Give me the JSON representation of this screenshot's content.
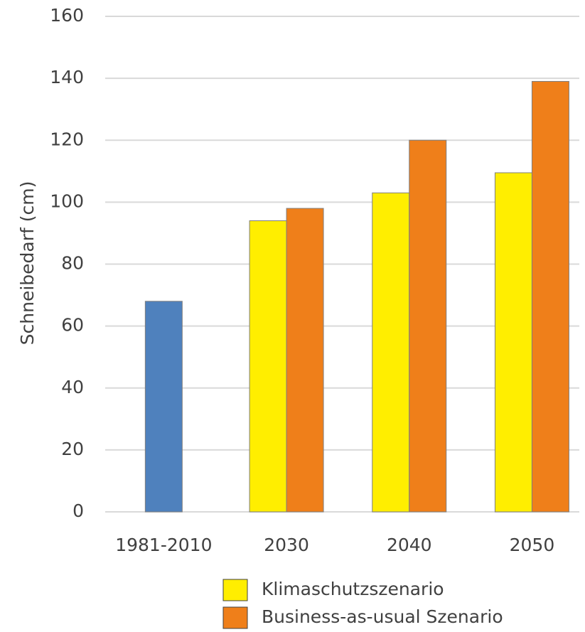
{
  "chart_data": {
    "type": "bar",
    "y_axis_label": "Schneibedarf (cm)",
    "categories": [
      "1981-2010",
      "2030",
      "2040",
      "2050"
    ],
    "series": [
      {
        "color": "#4f81bd",
        "values": [
          68,
          null,
          null,
          null
        ]
      },
      {
        "name": "Klimaschutzszenario",
        "color": "#ffee00",
        "values": [
          null,
          94,
          103,
          109.5
        ]
      },
      {
        "name": "Business-as-usual Szenario",
        "color": "#ef7f1a",
        "values": [
          null,
          98,
          120,
          139
        ]
      }
    ],
    "ylim": [
      0,
      160
    ],
    "yticks": [
      0,
      20,
      40,
      60,
      80,
      100,
      120,
      140,
      160
    ],
    "grid": true
  }
}
